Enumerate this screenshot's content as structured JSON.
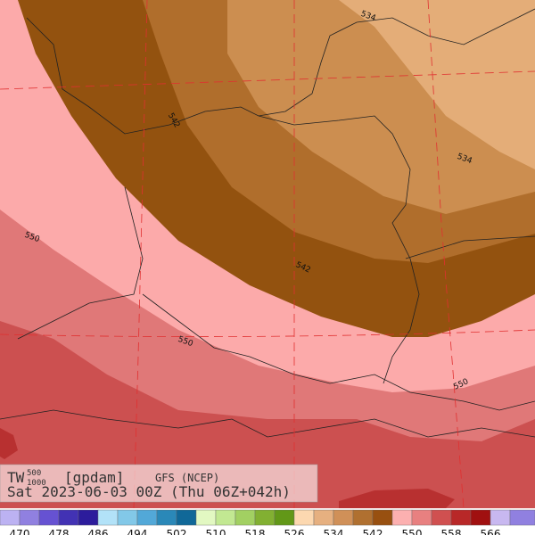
{
  "info": {
    "variable": "TW",
    "superscript": "500",
    "subscript": "1000",
    "units": "[gpdam]",
    "model": "GFS (NCEP)",
    "valid": "Sat 2023-06-03 00Z (Thu 06Z+042h)"
  },
  "contour_labels": [
    "534",
    "542",
    "534",
    "550",
    "542",
    "550",
    "550"
  ],
  "colorbar": {
    "levels": [
      470,
      478,
      486,
      494,
      502,
      510,
      518,
      526,
      534,
      542,
      550,
      558,
      566
    ],
    "colors": [
      "#bcb2f2",
      "#9080e0",
      "#6652d2",
      "#4232b4",
      "#2c1c9c",
      "#b2e2f8",
      "#82c8e8",
      "#52a8d8",
      "#2a88b8",
      "#106898",
      "#e2f8c2",
      "#c2e892",
      "#a2d062",
      "#82b032",
      "#629818",
      "#fcd8b0",
      "#e6b080",
      "#d09058",
      "#b07030",
      "#985010",
      "#fcb0b0",
      "#e88080",
      "#d05050",
      "#b82828",
      "#a01010",
      "#c8b8f0",
      "#9080e0"
    ]
  }
}
